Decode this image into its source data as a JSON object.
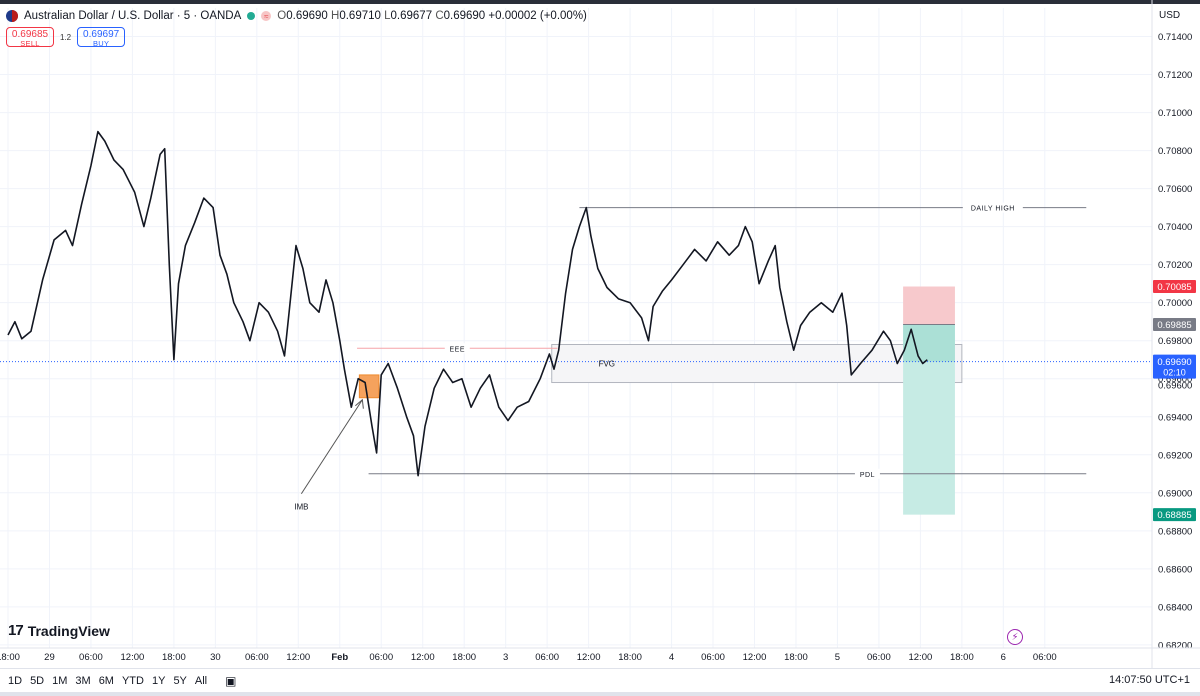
{
  "header": {
    "symbol": "Australian Dollar / U.S. Dollar · 5 · OANDA",
    "open_label": "O",
    "open": "0.69690",
    "high_label": "H",
    "high": "0.69710",
    "low_label": "L",
    "low": "0.69677",
    "close_label": "C",
    "close": "0.69690",
    "change": "+0.00002 (+0.00%)",
    "flag_icon": "aud-usd-flag-icon",
    "status_icon": "market-open-dot-icon",
    "wave_icon": "wave-icon"
  },
  "trade": {
    "sell_price": "0.69685",
    "sell_label": "SELL",
    "spread": "1.2",
    "buy_price": "0.69697",
    "buy_label": "BUY"
  },
  "currency": "USD",
  "logo": {
    "mark": "17",
    "text": "TradingView"
  },
  "bottom": {
    "ranges": [
      "1D",
      "5D",
      "1M",
      "3M",
      "6M",
      "YTD",
      "1Y",
      "5Y",
      "All"
    ],
    "calendar_icon": "calendar-icon",
    "clock": "14:07:50 UTC+1"
  },
  "colors": {
    "candles": "#131722",
    "stop_zone": "#f7c9cc",
    "target_zone": "#c6ebe4",
    "stop_label": "#f23645",
    "target_label": "#089981",
    "entry_label": "#787b86",
    "current_label": "#2962ff",
    "fvg_fill": "#f5f5f7",
    "eee_line": "#f5a3a8"
  },
  "chart_data": {
    "type": "line",
    "symbol": "AUD/USD",
    "timeframe": "5",
    "ylim": [
      0.6811,
      0.7155
    ],
    "y_ticks": [
      "0.71400",
      "0.71200",
      "0.71000",
      "0.70800",
      "0.70600",
      "0.70400",
      "0.70200",
      "0.70000",
      "0.69800",
      "0.69600",
      "0.69400",
      "0.69200",
      "0.69000",
      "0.68800",
      "0.68600",
      "0.68400",
      "0.68200"
    ],
    "y_tick_values": [
      0.714,
      0.712,
      0.71,
      0.708,
      0.706,
      0.704,
      0.702,
      0.7,
      0.698,
      0.696,
      0.694,
      0.692,
      0.69,
      0.688,
      0.686,
      0.684,
      0.682
    ],
    "x_ticks": [
      "18:00",
      "29",
      "06:00",
      "12:00",
      "18:00",
      "30",
      "06:00",
      "12:00",
      "Feb",
      "06:00",
      "12:00",
      "18:00",
      "3",
      "06:00",
      "12:00",
      "18:00",
      "4",
      "06:00",
      "12:00",
      "18:00",
      "5",
      "06:00",
      "12:00",
      "18:00",
      "6",
      "06:00"
    ],
    "x_tick_bold": [
      false,
      false,
      false,
      false,
      false,
      false,
      false,
      false,
      true,
      false,
      false,
      false,
      false,
      false,
      false,
      false,
      false,
      false,
      false,
      false,
      false,
      false,
      false,
      false,
      false,
      false
    ],
    "x_index": [
      0,
      36,
      72,
      108,
      144,
      180,
      216,
      252,
      288,
      324,
      360,
      396,
      432,
      468,
      504,
      540,
      576,
      612,
      648,
      684,
      720,
      756,
      792,
      828,
      864,
      900
    ],
    "price_path": [
      [
        0,
        0.6983
      ],
      [
        6,
        0.699
      ],
      [
        12,
        0.6981
      ],
      [
        20,
        0.6985
      ],
      [
        30,
        0.7012
      ],
      [
        40,
        0.7033
      ],
      [
        50,
        0.7038
      ],
      [
        56,
        0.703
      ],
      [
        64,
        0.7052
      ],
      [
        72,
        0.7072
      ],
      [
        78,
        0.709
      ],
      [
        84,
        0.7085
      ],
      [
        92,
        0.7075
      ],
      [
        100,
        0.707
      ],
      [
        110,
        0.7058
      ],
      [
        118,
        0.704
      ],
      [
        124,
        0.7055
      ],
      [
        132,
        0.7078
      ],
      [
        136,
        0.7081
      ],
      [
        140,
        0.702
      ],
      [
        144,
        0.697
      ],
      [
        148,
        0.701
      ],
      [
        154,
        0.703
      ],
      [
        162,
        0.7042
      ],
      [
        170,
        0.7055
      ],
      [
        178,
        0.705
      ],
      [
        184,
        0.7025
      ],
      [
        190,
        0.7015
      ],
      [
        196,
        0.7
      ],
      [
        204,
        0.699
      ],
      [
        210,
        0.698
      ],
      [
        218,
        0.7
      ],
      [
        226,
        0.6995
      ],
      [
        234,
        0.6985
      ],
      [
        240,
        0.6972
      ],
      [
        244,
        0.6995
      ],
      [
        250,
        0.703
      ],
      [
        256,
        0.7018
      ],
      [
        262,
        0.7
      ],
      [
        270,
        0.6995
      ],
      [
        276,
        0.7012
      ],
      [
        282,
        0.7
      ],
      [
        288,
        0.698
      ],
      [
        292,
        0.6965
      ],
      [
        298,
        0.6945
      ],
      [
        304,
        0.696
      ],
      [
        310,
        0.6958
      ],
      [
        316,
        0.6935
      ],
      [
        320,
        0.6921
      ],
      [
        324,
        0.6962
      ],
      [
        330,
        0.6968
      ],
      [
        338,
        0.6955
      ],
      [
        346,
        0.694
      ],
      [
        352,
        0.693
      ],
      [
        356,
        0.6909
      ],
      [
        362,
        0.6935
      ],
      [
        370,
        0.6955
      ],
      [
        378,
        0.6965
      ],
      [
        386,
        0.6958
      ],
      [
        394,
        0.696
      ],
      [
        402,
        0.6945
      ],
      [
        410,
        0.6955
      ],
      [
        418,
        0.6962
      ],
      [
        426,
        0.6945
      ],
      [
        434,
        0.6938
      ],
      [
        442,
        0.6945
      ],
      [
        452,
        0.6948
      ],
      [
        462,
        0.696
      ],
      [
        470,
        0.6973
      ],
      [
        474,
        0.6965
      ],
      [
        478,
        0.6975
      ],
      [
        484,
        0.7005
      ],
      [
        490,
        0.7028
      ],
      [
        496,
        0.704
      ],
      [
        502,
        0.705
      ],
      [
        506,
        0.7035
      ],
      [
        512,
        0.7018
      ],
      [
        520,
        0.7008
      ],
      [
        530,
        0.7002
      ],
      [
        540,
        0.7
      ],
      [
        550,
        0.6992
      ],
      [
        556,
        0.698
      ],
      [
        560,
        0.6998
      ],
      [
        568,
        0.7006
      ],
      [
        576,
        0.7012
      ],
      [
        586,
        0.702
      ],
      [
        596,
        0.7028
      ],
      [
        606,
        0.7022
      ],
      [
        616,
        0.7032
      ],
      [
        626,
        0.7025
      ],
      [
        634,
        0.703
      ],
      [
        640,
        0.704
      ],
      [
        646,
        0.7032
      ],
      [
        652,
        0.701
      ],
      [
        660,
        0.7022
      ],
      [
        666,
        0.703
      ],
      [
        670,
        0.7008
      ],
      [
        676,
        0.699
      ],
      [
        682,
        0.6975
      ],
      [
        688,
        0.6988
      ],
      [
        696,
        0.6995
      ],
      [
        706,
        0.7
      ],
      [
        716,
        0.6995
      ],
      [
        724,
        0.7005
      ],
      [
        728,
        0.6988
      ],
      [
        732,
        0.6962
      ],
      [
        740,
        0.6968
      ],
      [
        750,
        0.6975
      ],
      [
        760,
        0.6985
      ],
      [
        766,
        0.698
      ],
      [
        772,
        0.6968
      ],
      [
        778,
        0.6975
      ],
      [
        784,
        0.6986
      ],
      [
        790,
        0.6972
      ],
      [
        794,
        0.6968
      ],
      [
        798,
        0.697
      ]
    ],
    "annotations": [
      {
        "label": "DAILY HIGH",
        "type": "horizontal_line",
        "y": 0.705,
        "x_start": 496,
        "x_end": 936
      },
      {
        "label": "EEE",
        "type": "horizontal_line",
        "y": 0.6976,
        "x_start": 303,
        "x_end": 477
      },
      {
        "label": "FVG",
        "type": "zone",
        "y_top": 0.6978,
        "y_bottom": 0.6958,
        "x_start": 472,
        "x_end": 828
      },
      {
        "label": "PDL",
        "type": "horizontal_line",
        "y": 0.691,
        "x_start": 313,
        "x_end": 936
      },
      {
        "label": "IMB",
        "type": "zone_with_arrow",
        "y_top": 0.6962,
        "y_bottom": 0.695,
        "x_start": 305,
        "x_end": 322
      }
    ],
    "position": {
      "type": "short",
      "x_start": 777,
      "x_end": 822,
      "stop": 0.70085,
      "entry": 0.69885,
      "target": 0.68885,
      "stop_label": "0.70085",
      "entry_label": "0.69885",
      "target_label": "0.68885"
    },
    "current_price": 0.6969,
    "current_price_label": "0.69690",
    "current_price_countdown": "02:10",
    "last_price_axis_label": "0.69600"
  }
}
